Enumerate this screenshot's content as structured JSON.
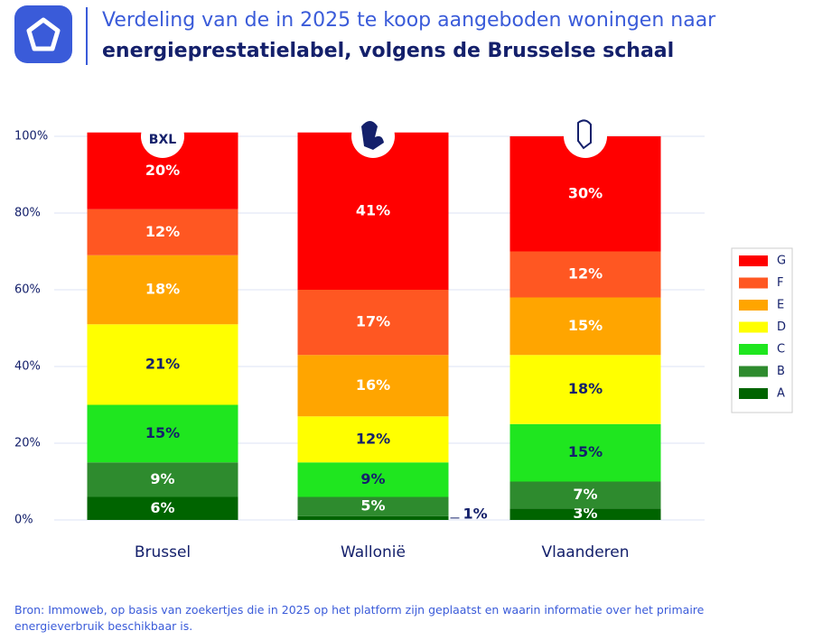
{
  "chart_data": {
    "type": "stacked_bar",
    "title": [
      "Verdeling van de in 2025 te koop aangeboden woningen naar",
      "energieprestatielabel, volgens de Brusselse schaal"
    ],
    "logo_text": "BXL",
    "categories": [
      "Brussel",
      "Wallonië",
      "Vlaanderen"
    ],
    "ylim": [
      0,
      100
    ],
    "yticks": [
      {
        "value": 0,
        "label": "0%"
      },
      {
        "value": 20,
        "label": "20%"
      },
      {
        "value": 40,
        "label": "40%"
      },
      {
        "value": 60,
        "label": "60%"
      },
      {
        "value": 80,
        "label": "80%"
      },
      {
        "value": 100,
        "label": "100%"
      }
    ],
    "grid": true,
    "legend": "right",
    "series": [
      {
        "name": "A",
        "color": "#006400",
        "label_color": "#ffffff",
        "values": [
          6,
          1,
          3
        ],
        "value_labels": [
          "6%",
          "1%",
          "3%"
        ]
      },
      {
        "name": "B",
        "color": "#2e8b2e",
        "label_color": "#ffffff",
        "values": [
          9,
          5,
          7
        ],
        "value_labels": [
          "9%",
          "5%",
          "7%"
        ]
      },
      {
        "name": "C",
        "color": "#1fe61f",
        "label_color": "#14206b",
        "values": [
          15,
          9,
          15
        ],
        "value_labels": [
          "15%",
          "9%",
          "15%"
        ]
      },
      {
        "name": "D",
        "color": "#ffff00",
        "label_color": "#14206b",
        "values": [
          21,
          12,
          18
        ],
        "value_labels": [
          "21%",
          "12%",
          "18%"
        ]
      },
      {
        "name": "E",
        "color": "#ffa500",
        "label_color": "#ffffff",
        "values": [
          18,
          16,
          15
        ],
        "value_labels": [
          "18%",
          "16%",
          "15%"
        ]
      },
      {
        "name": "F",
        "color": "#ff5722",
        "label_color": "#ffffff",
        "values": [
          12,
          17,
          12
        ],
        "value_labels": [
          "12%",
          "17%",
          "12%"
        ]
      },
      {
        "name": "G",
        "color": "#ff0000",
        "label_color": "#ffffff",
        "values": [
          20,
          41,
          30
        ],
        "value_labels": [
          "20%",
          "41%",
          "30%"
        ]
      }
    ],
    "source": "Bron: Immoweb, op basis van zoekertjes die in 2025 op het platform zijn geplaatst en waarin informatie over het primaire energieverbruik beschikbaar is."
  }
}
